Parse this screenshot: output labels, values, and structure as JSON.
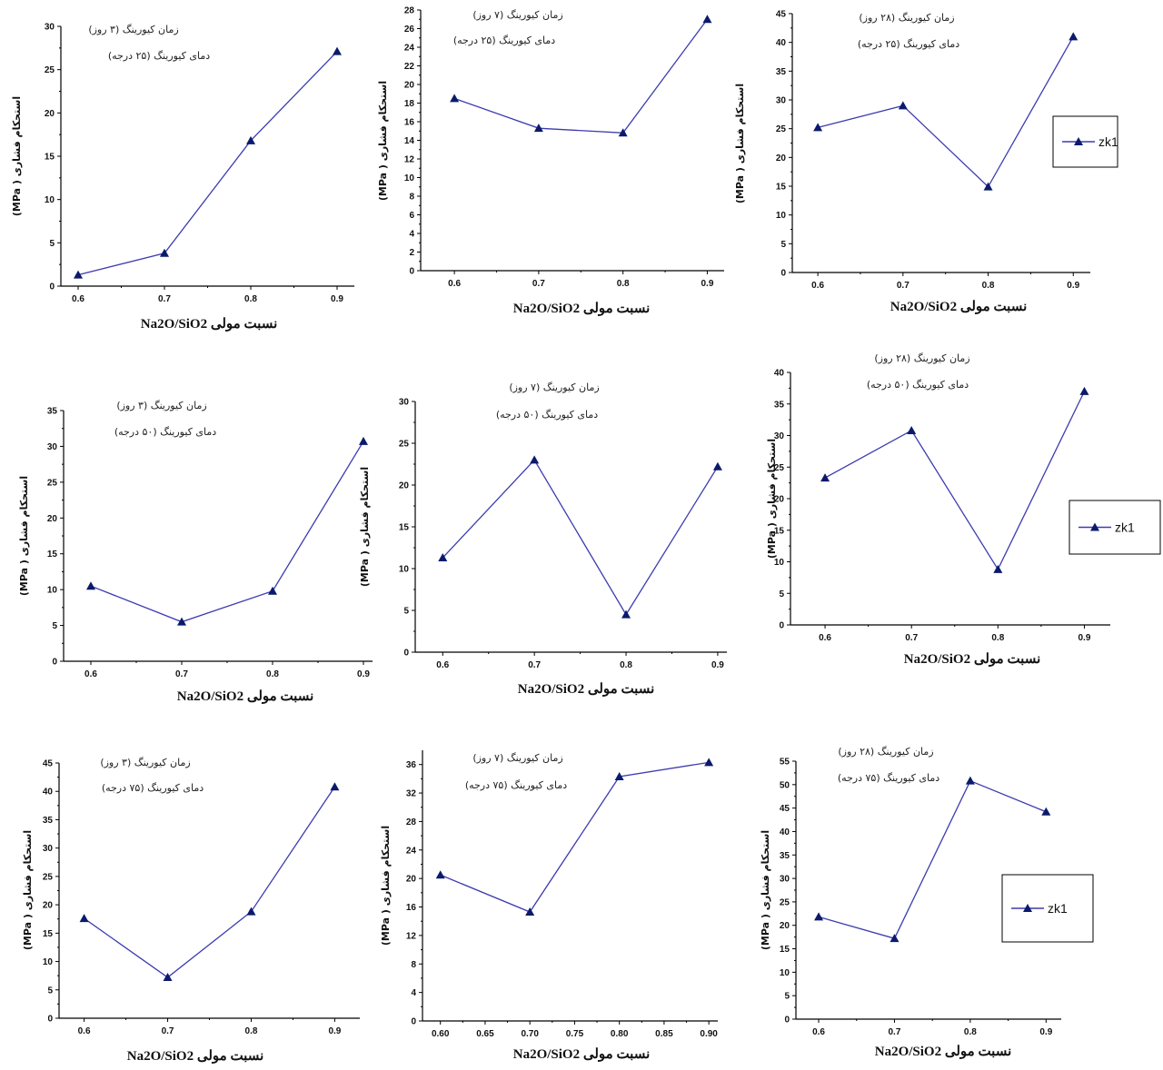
{
  "colors": {
    "series": "#3b3bb0",
    "marker": "#0b1a6b",
    "axis": "#000000"
  },
  "chart_data": [
    {
      "type": "line",
      "title": "زمان کیورینگ (۳ روز)",
      "subtitle": "دمای کیورینگ (۲۵ درجه)",
      "xlabel": "Na2O/SiO2 نسبت مولی",
      "ylabel": "استحکام فشاری ( MPa)",
      "x": [
        0.6,
        0.7,
        0.8,
        0.9
      ],
      "xticks": [
        "0.6",
        "0.7",
        "0.8",
        "0.9"
      ],
      "xlim": [
        0.58,
        0.92
      ],
      "ylim": [
        0,
        30
      ],
      "yticks": [
        "0",
        "5",
        "10",
        "15",
        "20",
        "25",
        "30"
      ],
      "series": [
        {
          "values": [
            1.3,
            3.8,
            16.8,
            27.1
          ]
        }
      ]
    },
    {
      "type": "line",
      "title": "زمان کیورینگ (۷ روز)",
      "subtitle": "دمای کیورینگ (۲۵ درجه)",
      "xlabel": "Na2O/SiO2 نسبت مولی",
      "ylabel": "استحکام فشاری ( MPa)",
      "x": [
        0.6,
        0.7,
        0.8,
        0.9
      ],
      "xticks": [
        "0.6",
        "0.7",
        "0.8",
        "0.9"
      ],
      "xlim": [
        0.56,
        0.92
      ],
      "ylim": [
        0,
        28
      ],
      "yticks": [
        "0",
        "2",
        "4",
        "6",
        "8",
        "10",
        "12",
        "14",
        "16",
        "18",
        "20",
        "22",
        "24",
        "26",
        "28"
      ],
      "series": [
        {
          "values": [
            18.5,
            15.3,
            14.8,
            27.0
          ]
        }
      ]
    },
    {
      "type": "line",
      "title": "زمان کیورینگ (۲۸ روز)",
      "subtitle": "دمای کیورینگ (۲۵ درجه)",
      "xlabel": "Na2O/SiO2 نسبت مولی",
      "ylabel": "استحکام فشاری ( MPa)",
      "x": [
        0.6,
        0.7,
        0.8,
        0.9
      ],
      "xticks": [
        "0.6",
        "0.7",
        "0.8",
        "0.9"
      ],
      "xlim": [
        0.57,
        0.92
      ],
      "ylim": [
        0,
        45
      ],
      "yticks": [
        "0",
        "5",
        "10",
        "15",
        "20",
        "25",
        "30",
        "35",
        "40",
        "45"
      ],
      "legend": "right",
      "legend_label": "zk1",
      "series": [
        {
          "name": "zk1",
          "values": [
            25.2,
            29.0,
            14.9,
            41.0
          ]
        }
      ]
    },
    {
      "type": "line",
      "title": "زمان کیورینگ (۳ روز)",
      "subtitle": "دمای کیورینگ (۵۰ درجه)",
      "xlabel": "Na2O/SiO2 نسبت مولی",
      "ylabel": "استحکام فشاری ( MPa)",
      "x": [
        0.6,
        0.7,
        0.8,
        0.9
      ],
      "xticks": [
        "0.6",
        "0.7",
        "0.8",
        "0.9"
      ],
      "xlim": [
        0.57,
        0.91
      ],
      "ylim": [
        0,
        35
      ],
      "yticks": [
        "0",
        "5",
        "10",
        "15",
        "20",
        "25",
        "30",
        "35"
      ],
      "series": [
        {
          "values": [
            10.5,
            5.5,
            9.8,
            30.7
          ]
        }
      ]
    },
    {
      "type": "line",
      "title": "زمان کیورینگ (۷ روز)",
      "subtitle": "دمای کیورینگ (۵۰ درجه)",
      "xlabel": "Na2O/SiO2 نسبت مولی",
      "ylabel": "استحکام فشاری ( MPa)",
      "x": [
        0.6,
        0.7,
        0.8,
        0.9
      ],
      "xticks": [
        "0.6",
        "0.7",
        "0.8",
        "0.9"
      ],
      "xlim": [
        0.57,
        0.91
      ],
      "ylim": [
        0,
        30
      ],
      "yticks": [
        "0",
        "5",
        "10",
        "15",
        "20",
        "25",
        "30"
      ],
      "series": [
        {
          "values": [
            11.3,
            23.0,
            4.5,
            22.2
          ]
        }
      ]
    },
    {
      "type": "line",
      "title": "زمان کیورینگ (۲۸ روز)",
      "subtitle": "دمای کیورینگ (۵۰ درجه)",
      "xlabel": "Na2O/SiO2 نسبت مولی",
      "ylabel": "استحکام فشاری ( MPa)",
      "x": [
        0.6,
        0.7,
        0.8,
        0.9
      ],
      "xticks": [
        "0.6",
        "0.7",
        "0.8",
        "0.9"
      ],
      "xlim": [
        0.56,
        0.93
      ],
      "ylim": [
        0,
        40
      ],
      "yticks": [
        "0",
        "5",
        "10",
        "15",
        "20",
        "25",
        "30",
        "35",
        "40"
      ],
      "legend": "right",
      "legend_label": "zk1",
      "series": [
        {
          "name": "zk1",
          "values": [
            23.3,
            30.8,
            8.8,
            37.0
          ]
        }
      ]
    },
    {
      "type": "line",
      "title": "زمان کیورینگ (۳ روز)",
      "subtitle": "دمای کیورینگ (۷۵ درجه)",
      "xlabel": "Na2O/SiO2 نسبت مولی",
      "ylabel": "استحکام فشاری ( MPa)",
      "x": [
        0.6,
        0.7,
        0.8,
        0.9
      ],
      "xticks": [
        "0.6",
        "0.7",
        "0.8",
        "0.9"
      ],
      "xlim": [
        0.57,
        0.93
      ],
      "ylim": [
        0,
        45
      ],
      "yticks": [
        "0",
        "5",
        "10",
        "15",
        "20",
        "25",
        "30",
        "35",
        "40",
        "45"
      ],
      "series": [
        {
          "values": [
            17.6,
            7.2,
            18.8,
            40.8
          ]
        }
      ]
    },
    {
      "type": "line",
      "title": "زمان کیورینگ (۷ روز)",
      "subtitle": "دمای کیورینگ (۷۵ درجه)",
      "xlabel": "Na2O/SiO2 نسبت مولی",
      "ylabel": "استحکام فشاری ( MPa)",
      "x": [
        0.6,
        0.7,
        0.8,
        0.9
      ],
      "xticks": [
        "0.60",
        "0.65",
        "0.70",
        "0.75",
        "0.80",
        "0.85",
        "0.90"
      ],
      "xlim": [
        0.58,
        0.91
      ],
      "ylim": [
        0,
        38
      ],
      "yticks": [
        "0",
        "4",
        "8",
        "12",
        "16",
        "20",
        "24",
        "28",
        "32",
        "36"
      ],
      "series": [
        {
          "values": [
            20.5,
            15.3,
            34.3,
            36.3
          ]
        }
      ]
    },
    {
      "type": "line",
      "title": "زمان کیورینگ (۲۸ روز)",
      "subtitle": "دمای کیورینگ (۷۵ درجه)",
      "xlabel": "Na2O/SiO2 نسبت مولی",
      "ylabel": "استحکام فشاری ( MPa)",
      "x": [
        0.6,
        0.7,
        0.8,
        0.9
      ],
      "xticks": [
        "0.6",
        "0.7",
        "0.8",
        "0.9"
      ],
      "xlim": [
        0.57,
        0.92
      ],
      "ylim": [
        0,
        55
      ],
      "yticks": [
        "0",
        "5",
        "10",
        "15",
        "20",
        "25",
        "30",
        "35",
        "40",
        "45",
        "50",
        "55"
      ],
      "legend": "right",
      "legend_label": "zk1",
      "series": [
        {
          "name": "zk1",
          "values": [
            21.8,
            17.2,
            50.8,
            44.2
          ]
        }
      ]
    }
  ]
}
